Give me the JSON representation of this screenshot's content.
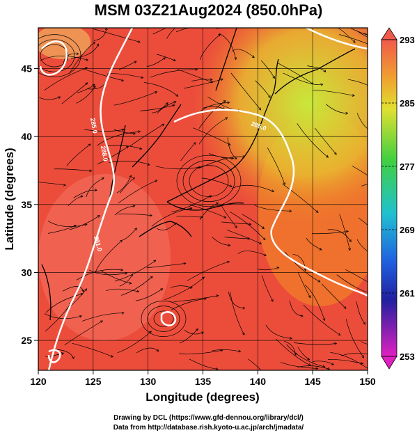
{
  "title": "MSM 03Z21Aug2024 (850.0hPa)",
  "x_axis": {
    "label": "Longitude (degrees)",
    "ticks": [
      "120",
      "125",
      "130",
      "135",
      "140",
      "145",
      "150"
    ]
  },
  "y_axis": {
    "label": "Latitude  (degrees)",
    "ticks": [
      "25",
      "30",
      "35",
      "40",
      "45"
    ]
  },
  "colorbar": {
    "ticks": [
      "293",
      "285",
      "277",
      "269",
      "261",
      "253"
    ]
  },
  "contour_labels": [
    "285.0",
    "288.0",
    "291.0",
    "285.0"
  ],
  "credits": {
    "line1": "Drawing by DCL (https://www.gfd-dennou.org/library/dcl/)",
    "line2": "Data from http://database.rish.kyoto-u.ac.jp/arch/jmadata/"
  },
  "colors": {
    "warm": "#e8412c",
    "hot": "#f05a4a",
    "mild": "#f07a2a",
    "cool_ne": "#c8e83a",
    "contour": "#ffffff"
  }
}
